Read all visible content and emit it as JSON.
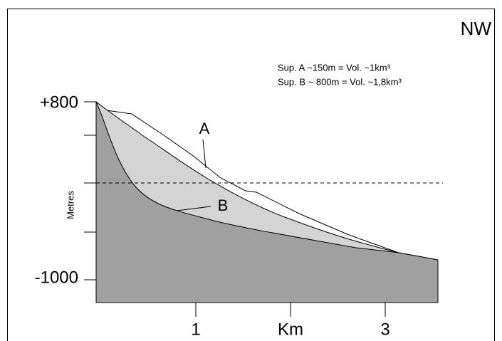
{
  "direction": "NW",
  "notes": [
    "Sup. A ~150m = Vol. ~1km³",
    "Sup. B ~ 800m = Vol. ~1,8km³"
  ],
  "y_axis": {
    "title": "Metres",
    "top_label": "+800",
    "bottom_label": "-1000"
  },
  "x_axis": {
    "labels": [
      "1",
      "Km",
      "3"
    ]
  },
  "surfaces": {
    "a": "A",
    "b": "B"
  }
}
